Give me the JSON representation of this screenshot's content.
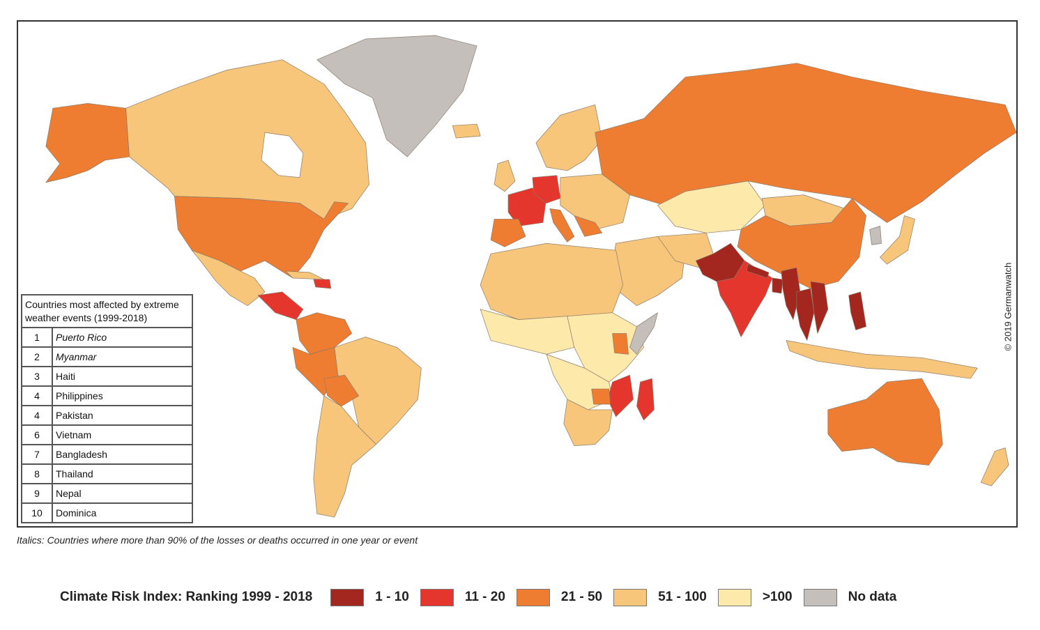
{
  "copyright": "© 2019 Germanwatch",
  "table": {
    "caption": "Countries most affected by extreme weather events (1999-2018)",
    "rows": [
      {
        "rank": "1",
        "country": "Puerto Rico",
        "italic": true
      },
      {
        "rank": "2",
        "country": "Myanmar",
        "italic": true
      },
      {
        "rank": "3",
        "country": "Haiti",
        "italic": false
      },
      {
        "rank": "4",
        "country": "Philippines",
        "italic": false
      },
      {
        "rank": "4",
        "country": "Pakistan",
        "italic": false
      },
      {
        "rank": "6",
        "country": "Vietnam",
        "italic": false
      },
      {
        "rank": "7",
        "country": "Bangladesh",
        "italic": false
      },
      {
        "rank": "8",
        "country": "Thailand",
        "italic": false
      },
      {
        "rank": "9",
        "country": "Nepal",
        "italic": false
      },
      {
        "rank": "10",
        "country": "Dominica",
        "italic": false
      }
    ]
  },
  "footnote": "Italics: Countries where more than 90% of the losses or deaths occurred in one year or event",
  "legend": {
    "title": "Climate Risk Index: Ranking 1999 - 2018",
    "items": [
      {
        "label": "1 - 10",
        "color": "#a3261f"
      },
      {
        "label": "11 - 20",
        "color": "#e5362d"
      },
      {
        "label": "21 - 50",
        "color": "#ee7d31"
      },
      {
        "label": "51 - 100",
        "color": "#f7c67a"
      },
      {
        "label": ">100",
        "color": "#fde9aa"
      },
      {
        "label": "No data",
        "color": "#c4bfbb"
      }
    ]
  },
  "colors": {
    "c1": "#a3261f",
    "c2": "#e5362d",
    "c3": "#ee7d31",
    "c4": "#f7c67a",
    "c5": "#fde9aa",
    "nodata": "#c4bfbb"
  }
}
